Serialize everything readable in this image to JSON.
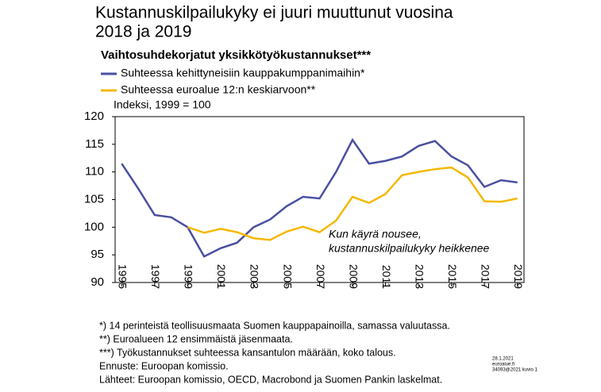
{
  "chart_data": {
    "type": "line",
    "title": [
      "Kustannuskilpailukyky  ei juuri muuttunut  vuosina",
      "2018 ja 2019"
    ],
    "subtitle": "Vaihtosuhdekorjatut yksikkötyökustannukset***",
    "y_label": "Indeksi, 1999 = 100",
    "x": [
      1995,
      1996,
      1997,
      1998,
      1999,
      2000,
      2001,
      2002,
      2003,
      2004,
      2005,
      2006,
      2007,
      2008,
      2009,
      2010,
      2011,
      2012,
      2013,
      2014,
      2015,
      2016,
      2017,
      2018,
      2019
    ],
    "series": [
      {
        "name": "Suhteessa kehittyneisiin kauppakumppanimaihin*",
        "color": "#4b4fa0",
        "values": [
          111.5,
          107,
          102.2,
          101.8,
          100,
          94.7,
          96.2,
          97.2,
          100,
          101.4,
          103.8,
          105.5,
          105.2,
          110,
          115.8,
          111.5,
          112,
          112.8,
          114.7,
          115.6,
          112.8,
          111.2,
          107.3,
          108.5,
          108.1
        ]
      },
      {
        "name": "Suhteessa euroalue 12:n keskiarvoon**",
        "color": "#f5b800",
        "values": [
          null,
          null,
          null,
          null,
          100,
          99,
          99.7,
          99.1,
          98,
          97.7,
          99.2,
          100.1,
          99.1,
          101.2,
          105.5,
          104.4,
          106,
          109.4,
          110,
          110.5,
          110.8,
          109,
          104.7,
          104.6,
          105.2
        ]
      }
    ],
    "xlim": [
      1994.6,
      2019.4
    ],
    "xticks": [
      1995,
      1997,
      1999,
      2001,
      2003,
      2005,
      2007,
      2009,
      2011,
      2013,
      2015,
      2017,
      2019
    ],
    "ylim": [
      90,
      120
    ],
    "yticks": [
      90,
      95,
      100,
      105,
      110,
      115,
      120
    ],
    "annotation": [
      "Kun käyrä nousee,",
      "kustannuskilpailukyky heikkenee"
    ],
    "notes": [
      "*) 14 perinteistä teollisuusmaata Suomen kauppapainoilla, samassa valuutassa.",
      "**) Euroalueen 12 ensimmäistä jäsenmaata.",
      "***)  Työkustannukset suhteessa kansantulon määrään, koko talous.",
      "Ennuste: Euroopan komissio.",
      "Lähteet: Euroopan komissio, OECD, Macrobond ja Suomen Pankin laskelmat."
    ],
    "stamp": [
      "28.1.2021",
      "euroalue.fi",
      "34093@2021 kuvio 1"
    ]
  }
}
